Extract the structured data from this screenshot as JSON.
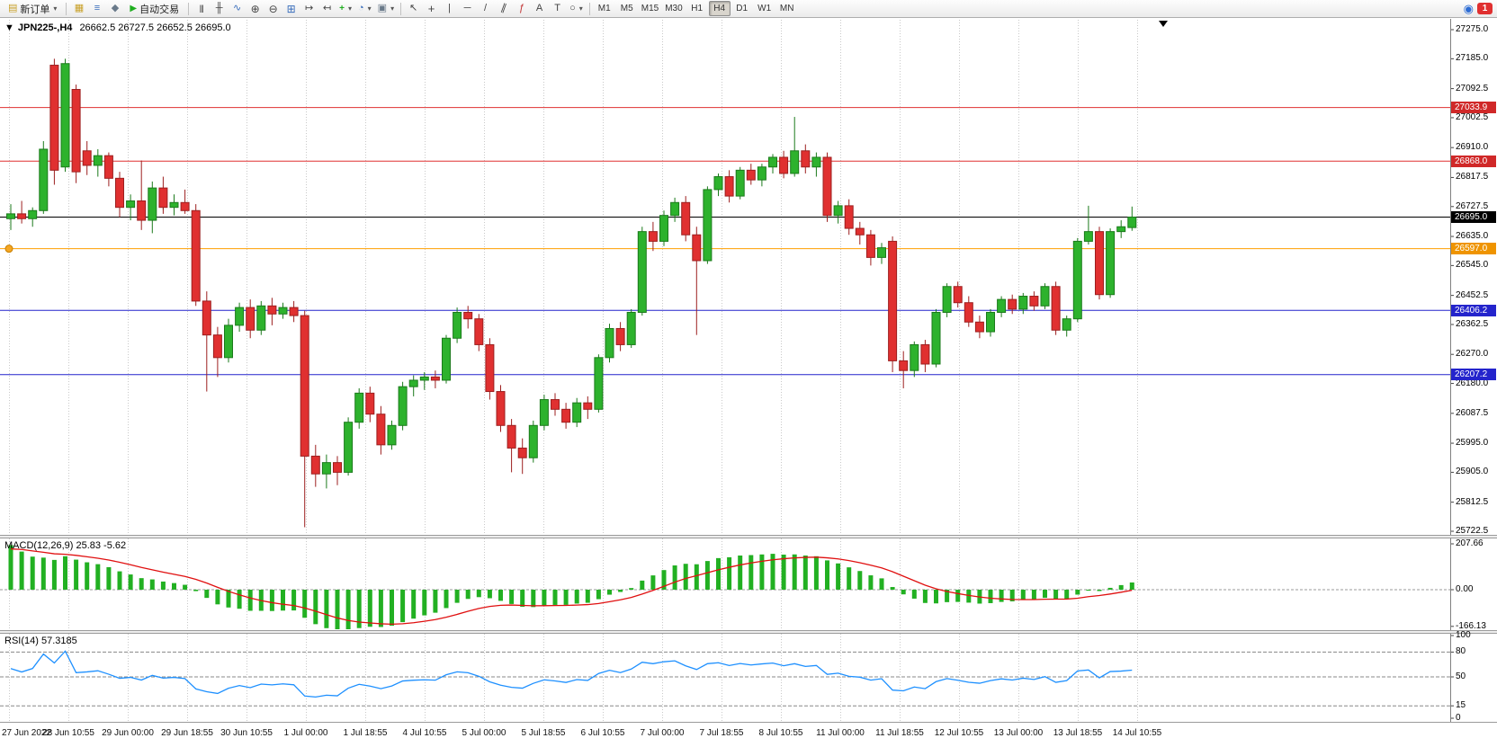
{
  "toolbar": {
    "new_order_label": "新订单",
    "auto_trading_label": "自动交易",
    "timeframes": [
      "M1",
      "M5",
      "M15",
      "M30",
      "H1",
      "H4",
      "D1",
      "W1",
      "MN"
    ],
    "active_timeframe": "H4",
    "notification_count": "1",
    "icons": {
      "new_order": "▤",
      "dropdown": "▾",
      "new_chart": "▦",
      "market_watch": "≡",
      "navigator": "◆",
      "auto_trading_play": "▶",
      "bar_chart": "|||",
      "candlestick_chart": "╫",
      "line_chart": "∿",
      "zoom_in": "⊕",
      "zoom_out": "⊖",
      "tile_windows": "⊞",
      "auto_scroll": "↦",
      "chart_shift": "↤",
      "add_indicator": "+",
      "periods_clock": "◔",
      "template": "▣",
      "cursor": "↖",
      "crosshair": "+",
      "vertical_line": "|",
      "horizontal_line": "─",
      "trend_line": "/",
      "channel": "∥",
      "fibonacci": "ƒ",
      "text_tool": "A",
      "label_tool": "T",
      "shapes": "○",
      "community": "◉"
    }
  },
  "chart": {
    "collapse_arrow": "▼",
    "title_symbol": "JPN225-,H4",
    "title_ohlc": "26662.5 26727.5 26652.5 26695.0"
  },
  "chart_data": {
    "type": "candlestick",
    "symbol": "JPN225-",
    "timeframe": "H4",
    "last_candle": {
      "open": 26662.5,
      "high": 26727.5,
      "low": 26652.5,
      "close": 26695.0
    },
    "price_axis": {
      "min": 25722.5,
      "max": 27275.0,
      "ticks": [
        27275.0,
        27185.0,
        27092.5,
        27002.5,
        26910.0,
        26817.5,
        26727.5,
        26635.0,
        26545.0,
        26452.5,
        26362.5,
        26270.0,
        26180.0,
        26087.5,
        25995.0,
        25905.0,
        25812.5,
        25722.5
      ]
    },
    "time_axis": [
      "27 Jun 2022",
      "28 Jun 10:55",
      "29 Jun 00:00",
      "29 Jun 18:55",
      "30 Jun 10:55",
      "1 Jul 00:00",
      "1 Jul 18:55",
      "4 Jul 10:55",
      "5 Jul 00:00",
      "5 Jul 18:55",
      "6 Jul 10:55",
      "7 Jul 00:00",
      "7 Jul 18:55",
      "8 Jul 10:55",
      "11 Jul 00:00",
      "11 Jul 18:55",
      "12 Jul 10:55",
      "13 Jul 00:00",
      "13 Jul 18:55",
      "14 Jul 10:55"
    ],
    "hlines": [
      {
        "price": 27033.9,
        "label": "27033.9",
        "color": "#e03030",
        "badge": "#d02828"
      },
      {
        "price": 26868.0,
        "label": "26868.0",
        "color": "#e03030",
        "badge": "#d02828"
      },
      {
        "price": 26695.0,
        "label": "26695.0",
        "color": "#000000",
        "badge": "#000000"
      },
      {
        "price": 26597.0,
        "label": "26597.0",
        "color": "#ff9f00",
        "badge": "#ef9400"
      },
      {
        "price": 26406.2,
        "label": "26406.2",
        "color": "#2424cc",
        "badge": "#2424cc"
      },
      {
        "price": 26207.2,
        "label": "26207.2",
        "color": "#2424cc",
        "badge": "#2424cc"
      }
    ],
    "colors": {
      "up": "#2db22d",
      "up_border": "#1b7a1b",
      "down": "#e03030",
      "down_border": "#9c1f1f",
      "macd_hist": "#22b022",
      "macd_signal": "#e01010",
      "rsi_line": "#1e90ff",
      "grid": "#c9c9c9"
    },
    "candles": [
      [
        26690,
        26735,
        26655,
        26705
      ],
      [
        26705,
        26745,
        26675,
        26690
      ],
      [
        26690,
        26725,
        26665,
        26715
      ],
      [
        26715,
        26930,
        26705,
        26905
      ],
      [
        27165,
        27185,
        26795,
        26840
      ],
      [
        26850,
        27185,
        26835,
        27170
      ],
      [
        27090,
        27105,
        26800,
        26835
      ],
      [
        26900,
        26930,
        26825,
        26855
      ],
      [
        26855,
        26905,
        26820,
        26885
      ],
      [
        26885,
        26895,
        26790,
        26815
      ],
      [
        26815,
        26835,
        26695,
        26725
      ],
      [
        26725,
        26765,
        26685,
        26745
      ],
      [
        26745,
        26870,
        26655,
        26685
      ],
      [
        26685,
        26805,
        26645,
        26785
      ],
      [
        26785,
        26820,
        26705,
        26725
      ],
      [
        26725,
        26765,
        26700,
        26740
      ],
      [
        26740,
        26780,
        26705,
        26715
      ],
      [
        26715,
        26735,
        26420,
        26435
      ],
      [
        26435,
        26465,
        26155,
        26330
      ],
      [
        26330,
        26355,
        26200,
        26260
      ],
      [
        26260,
        26380,
        26245,
        26360
      ],
      [
        26360,
        26430,
        26340,
        26415
      ],
      [
        26415,
        26440,
        26320,
        26345
      ],
      [
        26345,
        26435,
        26330,
        26420
      ],
      [
        26420,
        26445,
        26360,
        26395
      ],
      [
        26395,
        26430,
        26380,
        26415
      ],
      [
        26415,
        26435,
        26370,
        26390
      ],
      [
        26390,
        26405,
        25735,
        25955
      ],
      [
        25955,
        25990,
        25860,
        25900
      ],
      [
        25900,
        25960,
        25855,
        25935
      ],
      [
        25935,
        25955,
        25865,
        25905
      ],
      [
        25905,
        26075,
        25895,
        26060
      ],
      [
        26060,
        26165,
        26040,
        26150
      ],
      [
        26150,
        26170,
        26060,
        26085
      ],
      [
        26085,
        26110,
        25960,
        25990
      ],
      [
        25990,
        26065,
        25975,
        26050
      ],
      [
        26050,
        26185,
        26035,
        26170
      ],
      [
        26170,
        26205,
        26140,
        26190
      ],
      [
        26190,
        26215,
        26160,
        26200
      ],
      [
        26200,
        26220,
        26165,
        26190
      ],
      [
        26190,
        26330,
        26180,
        26320
      ],
      [
        26320,
        26415,
        26305,
        26400
      ],
      [
        26400,
        26420,
        26350,
        26380
      ],
      [
        26380,
        26395,
        26280,
        26300
      ],
      [
        26300,
        26320,
        26130,
        26155
      ],
      [
        26155,
        26175,
        26030,
        26050
      ],
      [
        26050,
        26070,
        25905,
        25980
      ],
      [
        25980,
        26010,
        25900,
        25950
      ],
      [
        25950,
        26065,
        25935,
        26050
      ],
      [
        26050,
        26145,
        26035,
        26130
      ],
      [
        26130,
        26150,
        26080,
        26100
      ],
      [
        26100,
        26120,
        26040,
        26060
      ],
      [
        26060,
        26135,
        26045,
        26120
      ],
      [
        26120,
        26140,
        26070,
        26100
      ],
      [
        26100,
        26270,
        26090,
        26260
      ],
      [
        26260,
        26365,
        26245,
        26350
      ],
      [
        26350,
        26370,
        26280,
        26300
      ],
      [
        26300,
        26410,
        26290,
        26400
      ],
      [
        26400,
        26665,
        26390,
        26650
      ],
      [
        26650,
        26680,
        26590,
        26620
      ],
      [
        26620,
        26715,
        26605,
        26700
      ],
      [
        26700,
        26755,
        26680,
        26740
      ],
      [
        26740,
        26760,
        26620,
        26640
      ],
      [
        26640,
        26665,
        26330,
        26560
      ],
      [
        26560,
        26790,
        26550,
        26780
      ],
      [
        26780,
        26830,
        26760,
        26820
      ],
      [
        26820,
        26840,
        26740,
        26760
      ],
      [
        26760,
        26850,
        26750,
        26840
      ],
      [
        26840,
        26860,
        26795,
        26810
      ],
      [
        26810,
        26860,
        26790,
        26850
      ],
      [
        26850,
        26890,
        26830,
        26880
      ],
      [
        26880,
        26900,
        26815,
        26830
      ],
      [
        26830,
        27005,
        26820,
        26900
      ],
      [
        26900,
        26920,
        26830,
        26850
      ],
      [
        26850,
        26895,
        26820,
        26880
      ],
      [
        26880,
        26895,
        26680,
        26700
      ],
      [
        26700,
        26745,
        26675,
        26730
      ],
      [
        26730,
        26750,
        26640,
        26660
      ],
      [
        26660,
        26680,
        26610,
        26640
      ],
      [
        26640,
        26655,
        26545,
        26570
      ],
      [
        26570,
        26615,
        26550,
        26600
      ],
      [
        26620,
        26635,
        26215,
        26250
      ],
      [
        26250,
        26280,
        26165,
        26220
      ],
      [
        26220,
        26310,
        26200,
        26300
      ],
      [
        26300,
        26315,
        26215,
        26240
      ],
      [
        26240,
        26410,
        26230,
        26400
      ],
      [
        26400,
        26490,
        26385,
        26480
      ],
      [
        26480,
        26495,
        26415,
        26430
      ],
      [
        26430,
        26450,
        26355,
        26370
      ],
      [
        26370,
        26390,
        26320,
        26340
      ],
      [
        26340,
        26410,
        26325,
        26400
      ],
      [
        26400,
        26450,
        26385,
        26440
      ],
      [
        26440,
        26455,
        26395,
        26410
      ],
      [
        26410,
        26460,
        26395,
        26450
      ],
      [
        26450,
        26465,
        26405,
        26420
      ],
      [
        26420,
        26490,
        26410,
        26480
      ],
      [
        26480,
        26495,
        26330,
        26345
      ],
      [
        26345,
        26390,
        26325,
        26380
      ],
      [
        26380,
        26630,
        26370,
        26620
      ],
      [
        26620,
        26730,
        26610,
        26650
      ],
      [
        26650,
        26665,
        26440,
        26455
      ],
      [
        26455,
        26660,
        26445,
        26650
      ],
      [
        26650,
        26685,
        26630,
        26665
      ],
      [
        26662.5,
        26727.5,
        26652.5,
        26695.0
      ]
    ],
    "macd": {
      "title": "MACD(12,26,9) 25.83 -5.62",
      "params": [
        12,
        26,
        9
      ],
      "value": 25.83,
      "signal_value": -5.62,
      "axis": [
        {
          "v": 207.66,
          "label": "207.66"
        },
        {
          "v": 0,
          "label": "0.00"
        },
        {
          "v": -166.13,
          "label": "-166.13"
        }
      ]
    },
    "rsi": {
      "title": "RSI(14) 57.3185",
      "period": 14,
      "value": 57.3185,
      "axis": [
        {
          "v": 100,
          "label": "100"
        },
        {
          "v": 80,
          "label": "80"
        },
        {
          "v": 50,
          "label": "50"
        },
        {
          "v": 15,
          "label": "15"
        },
        {
          "v": 0,
          "label": "0"
        }
      ],
      "levels": [
        80,
        50,
        15
      ]
    }
  }
}
